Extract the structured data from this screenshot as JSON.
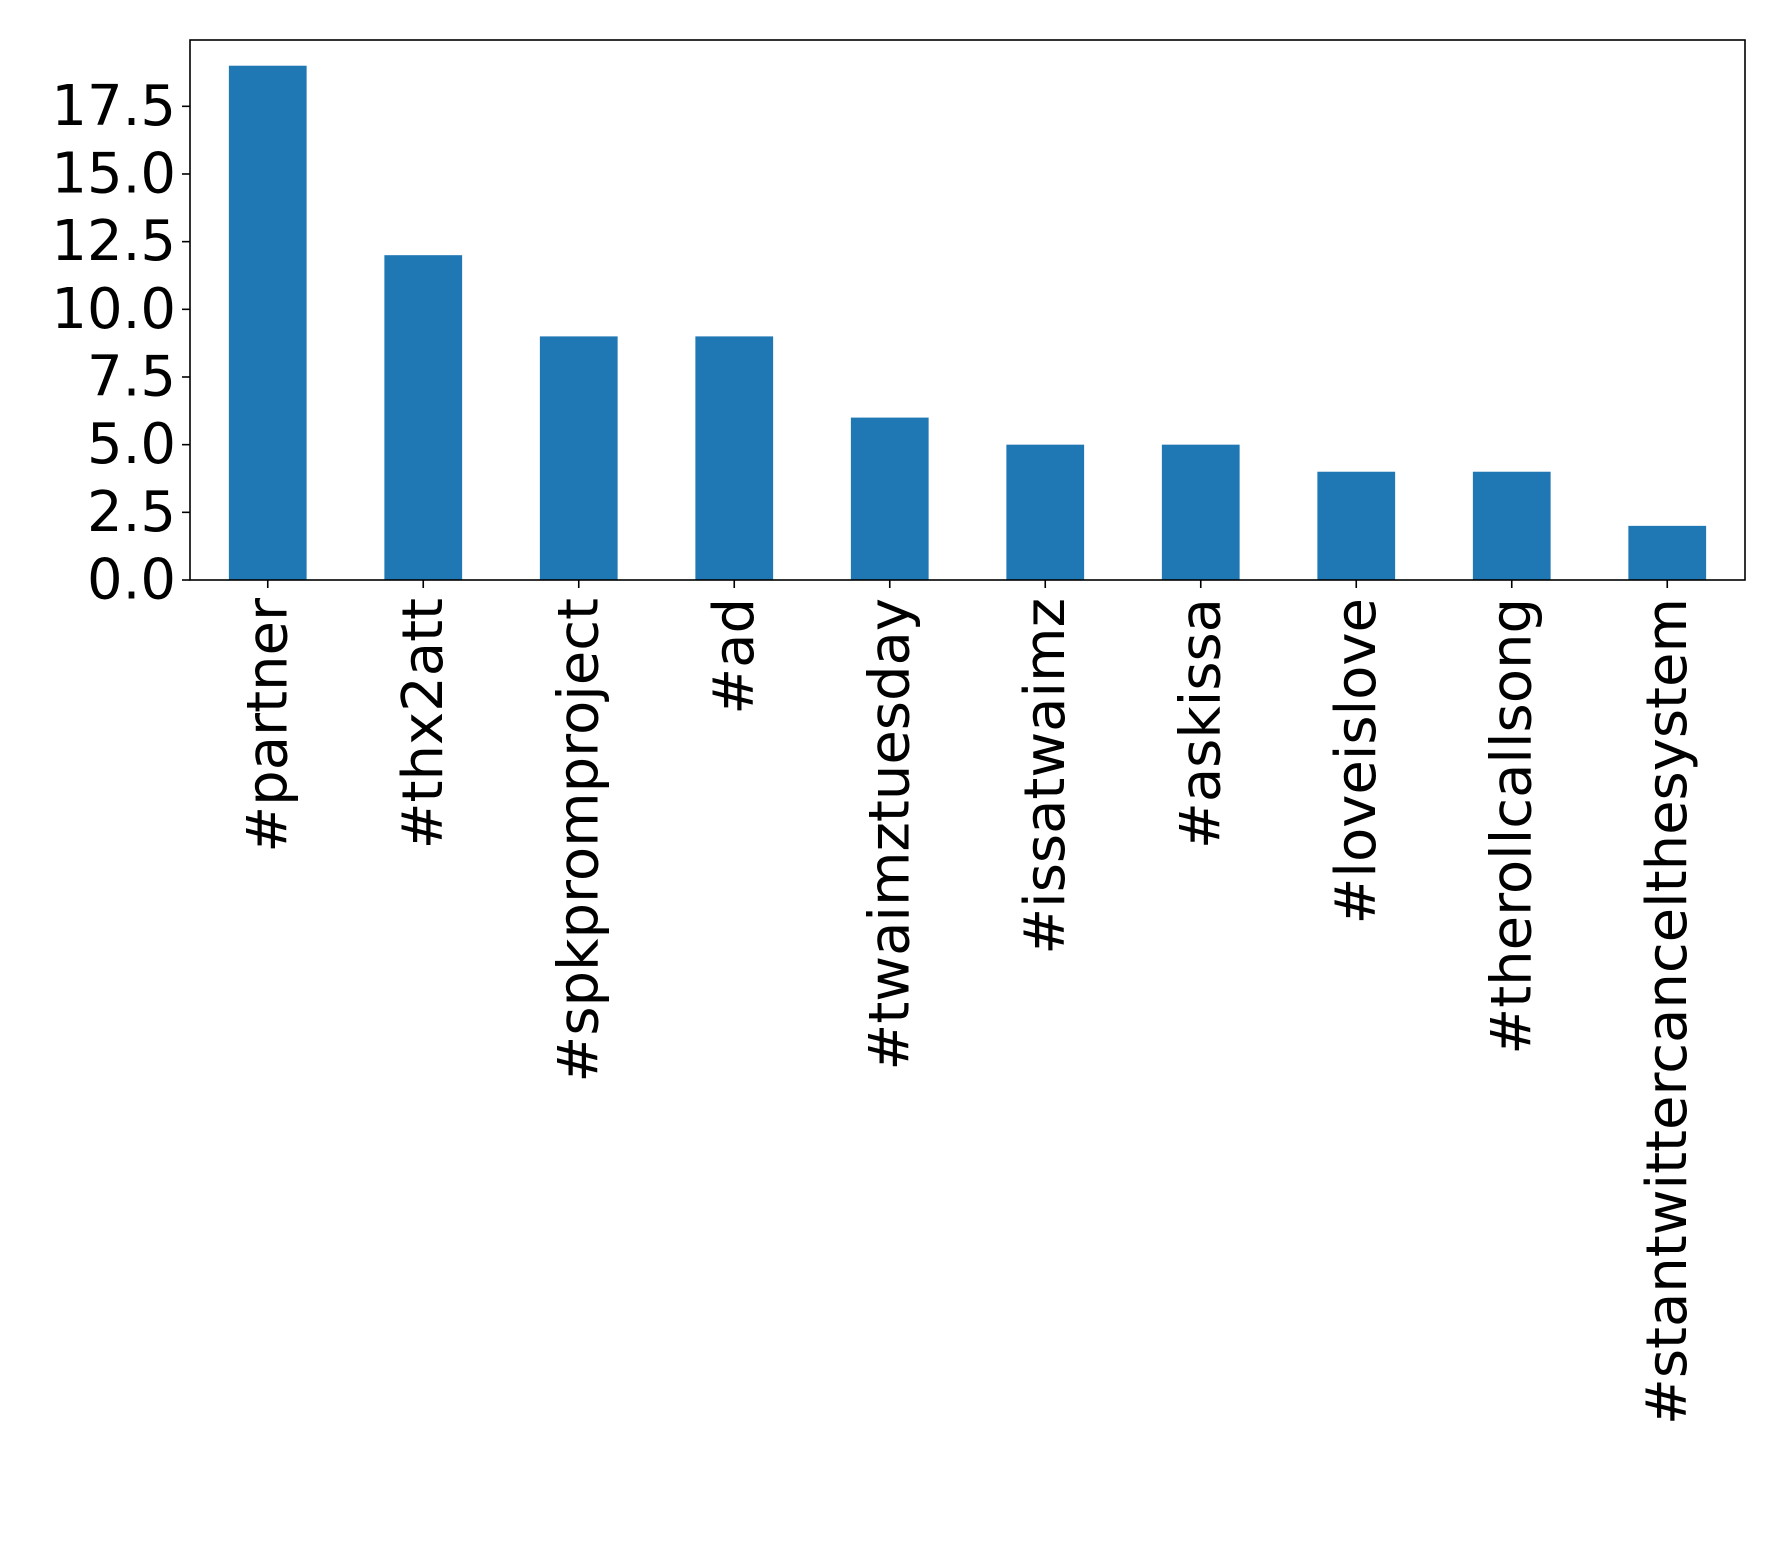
{
  "chart_data": {
    "type": "bar",
    "title": "",
    "xlabel": "",
    "ylabel": "",
    "categories": [
      "#partner",
      "#thx2att",
      "#spkpromproject",
      "#ad",
      "#twaimztuesday",
      "#issatwaimz",
      "#askissa",
      "#loveislove",
      "#therollcallsong",
      "#stantwittercancelthesystem"
    ],
    "values": [
      19,
      12,
      9,
      9,
      6,
      5,
      5,
      4,
      4,
      2
    ],
    "ylim": [
      0,
      19.95
    ],
    "yticks": [
      0.0,
      2.5,
      5.0,
      7.5,
      10.0,
      12.5,
      15.0,
      17.5
    ],
    "ytick_labels": [
      "0.0",
      "2.5",
      "5.0",
      "7.5",
      "10.0",
      "12.5",
      "15.0",
      "17.5"
    ],
    "bar_color": "#1f77b4",
    "grid": false,
    "legend": "none"
  }
}
